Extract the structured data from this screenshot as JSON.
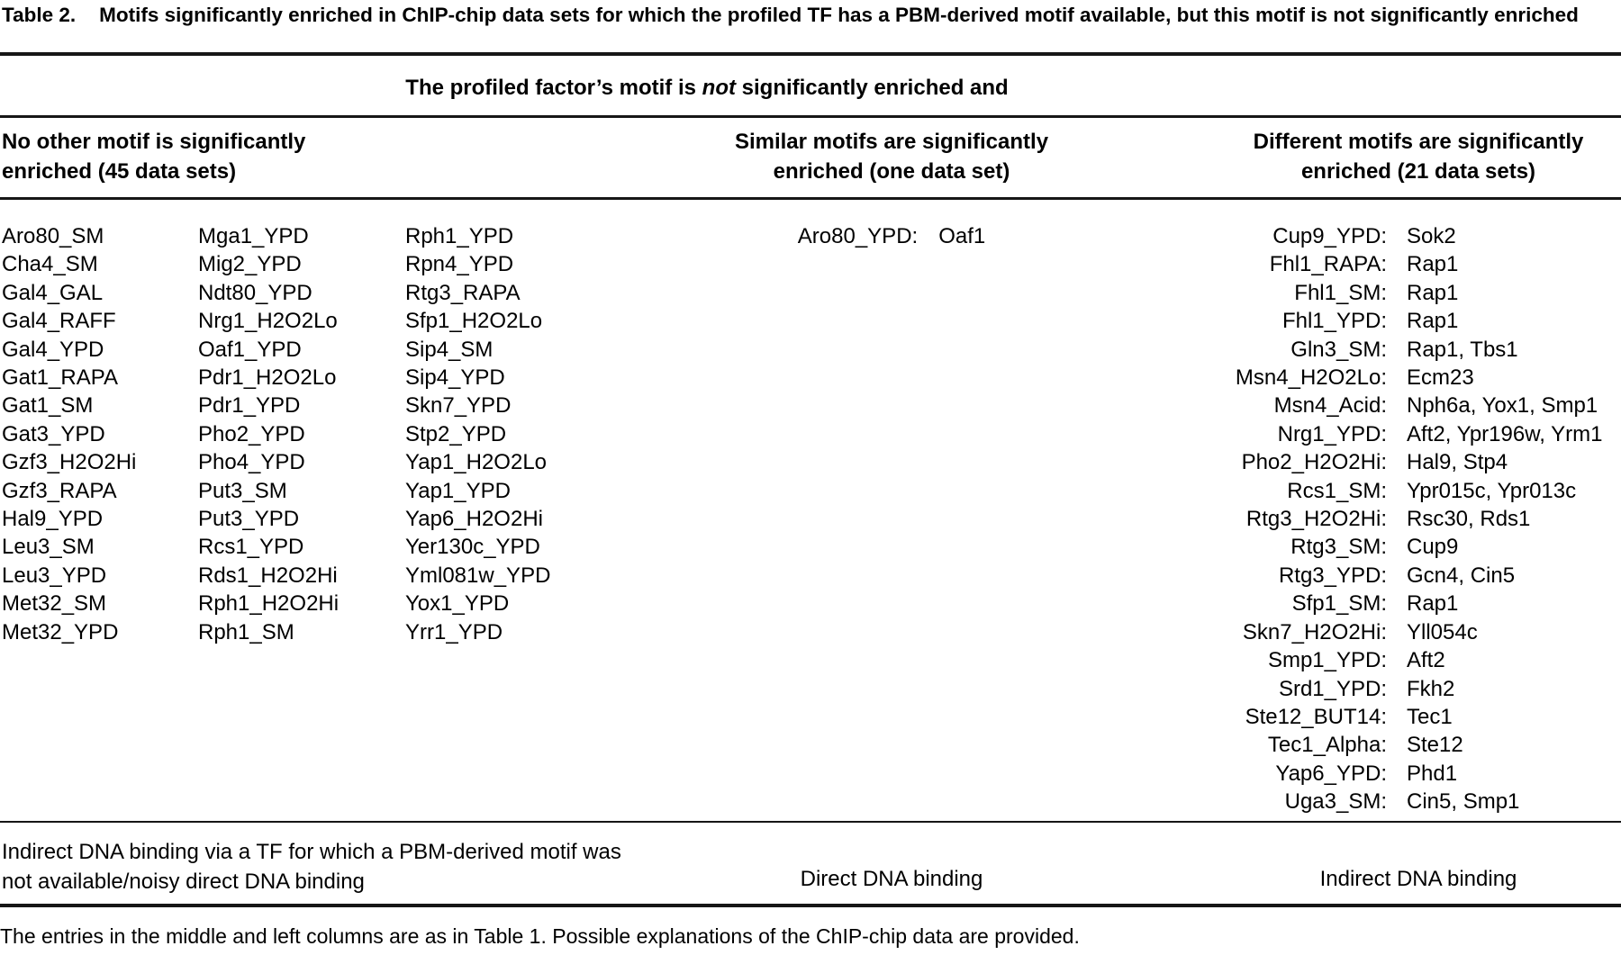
{
  "style": {
    "ink": "#000000",
    "paper": "#ffffff"
  },
  "title": {
    "label": "Table 2.",
    "text": "Motifs significantly enriched in ChIP-chip data sets for which the profiled TF has a PBM-derived motif available, but this motif is not significantly enriched"
  },
  "spanner": {
    "prefix": "The profiled factor’s motif is ",
    "em": "not",
    "suffix": " significantly enriched and"
  },
  "columns": {
    "left": {
      "header_lines": [
        "No other motif is significantly",
        "enriched (45 data sets)"
      ]
    },
    "middle": {
      "header_lines": [
        "Similar motifs are significantly",
        "enriched (one data set)"
      ]
    },
    "right": {
      "header_lines": [
        "Different motifs are significantly",
        "enriched (21 data sets)"
      ]
    }
  },
  "body": {
    "no_other": {
      "columns": [
        [
          "Aro80_SM",
          "Cha4_SM",
          "Gal4_GAL",
          "Gal4_RAFF",
          "Gal4_YPD",
          "Gat1_RAPA",
          "Gat1_SM",
          "Gat3_YPD",
          "Gzf3_H2O2Hi",
          "Gzf3_RAPA",
          "Hal9_YPD",
          "Leu3_SM",
          "Leu3_YPD",
          "Met32_SM",
          "Met32_YPD"
        ],
        [
          "Mga1_YPD",
          "Mig2_YPD",
          "Ndt80_YPD",
          "Nrg1_H2O2Lo",
          "Oaf1_YPD",
          "Pdr1_H2O2Lo",
          "Pdr1_YPD",
          "Pho2_YPD",
          "Pho4_YPD",
          "Put3_SM",
          "Put3_YPD",
          "Rcs1_YPD",
          "Rds1_H2O2Hi",
          "Rph1_H2O2Hi",
          "Rph1_SM"
        ],
        [
          "Rph1_YPD",
          "Rpn4_YPD",
          "Rtg3_RAPA",
          "Sfp1_H2O2Lo",
          "Sip4_SM",
          "Sip4_YPD",
          "Skn7_YPD",
          "Stp2_YPD",
          "Yap1_H2O2Lo",
          "Yap1_YPD",
          "Yap6_H2O2Hi",
          "Yer130c_YPD",
          "Yml081w_YPD",
          "Yox1_YPD",
          "Yrr1_YPD"
        ]
      ]
    },
    "similar": {
      "entries": [
        {
          "dataset": "Aro80_YPD:",
          "motifs": "Oaf1"
        }
      ]
    },
    "different": {
      "entries": [
        {
          "dataset": "Cup9_YPD:",
          "motifs": "Sok2"
        },
        {
          "dataset": "Fhl1_RAPA:",
          "motifs": "Rap1"
        },
        {
          "dataset": "Fhl1_SM:",
          "motifs": "Rap1"
        },
        {
          "dataset": "Fhl1_YPD:",
          "motifs": "Rap1"
        },
        {
          "dataset": "Gln3_SM:",
          "motifs": "Rap1, Tbs1"
        },
        {
          "dataset": "Msn4_H2O2Lo:",
          "motifs": "Ecm23"
        },
        {
          "dataset": "Msn4_Acid:",
          "motifs": "Nph6a, Yox1, Smp1"
        },
        {
          "dataset": "Nrg1_YPD:",
          "motifs": "Aft2, Ypr196w, Yrm1"
        },
        {
          "dataset": "Pho2_H2O2Hi:",
          "motifs": "Hal9, Stp4"
        },
        {
          "dataset": "Rcs1_SM:",
          "motifs": "Ypr015c, Ypr013c"
        },
        {
          "dataset": "Rtg3_H2O2Hi:",
          "motifs": "Rsc30, Rds1"
        },
        {
          "dataset": "Rtg3_SM:",
          "motifs": "Cup9"
        },
        {
          "dataset": "Rtg3_YPD:",
          "motifs": "Gcn4, Cin5"
        },
        {
          "dataset": "Sfp1_SM:",
          "motifs": "Rap1"
        },
        {
          "dataset": "Skn7_H2O2Hi:",
          "motifs": "Yll054c"
        },
        {
          "dataset": "Smp1_YPD:",
          "motifs": "Aft2"
        },
        {
          "dataset": "Srd1_YPD:",
          "motifs": "Fkh2"
        },
        {
          "dataset": "Ste12_BUT14:",
          "motifs": "Tec1"
        },
        {
          "dataset": "Tec1_Alpha:",
          "motifs": "Ste12"
        },
        {
          "dataset": "Yap6_YPD:",
          "motifs": "Phd1"
        },
        {
          "dataset": "Uga3_SM:",
          "motifs": "Cin5, Smp1"
        }
      ]
    }
  },
  "footer": {
    "left": "Indirect DNA binding via a TF for which a PBM-derived motif was not available/noisy direct DNA binding",
    "middle": "Direct DNA binding",
    "right": "Indirect DNA binding"
  },
  "caption": "The entries in the middle and left columns are as in Table 1. Possible explanations of the ChIP-chip data are provided."
}
